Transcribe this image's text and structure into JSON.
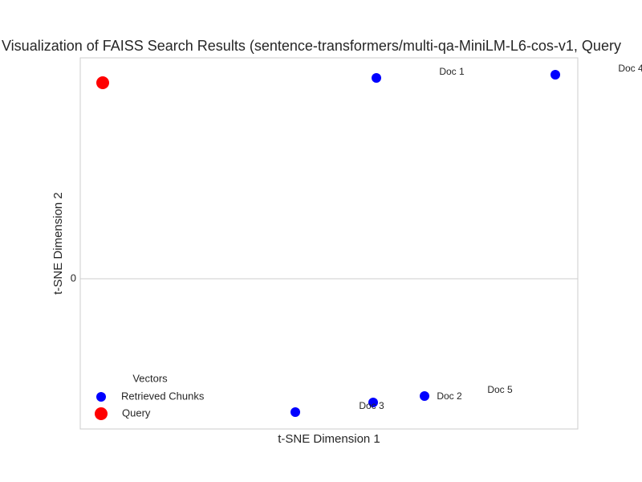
{
  "chart_data": {
    "type": "scatter",
    "title": "Visualization of FAISS Search Results (sentence-transformers/multi-qa-MiniLM-L6-cos-v1, Query",
    "xlabel": "t-SNE Dimension 1",
    "ylabel": "t-SNE Dimension 2",
    "xlim": [
      -310,
      310
    ],
    "ylim": [
      -187,
      275
    ],
    "yticks": [
      0
    ],
    "grid": true,
    "legend_title": "Vectors",
    "legend": "lower left",
    "series": [
      {
        "name": "Retrieved Chunks",
        "color": "#0000ff",
        "x": [
          59,
          282,
          -42,
          55,
          119
        ],
        "values": [
          250,
          254,
          -166,
          -154,
          -146
        ]
      },
      {
        "name": "Query",
        "color": "#ff0000",
        "x": [
          -282
        ],
        "values": [
          244
        ]
      }
    ],
    "annotations": [
      "Doc 1",
      "Doc 4",
      "Doc 3",
      "Doc 2",
      "Doc 5"
    ]
  }
}
